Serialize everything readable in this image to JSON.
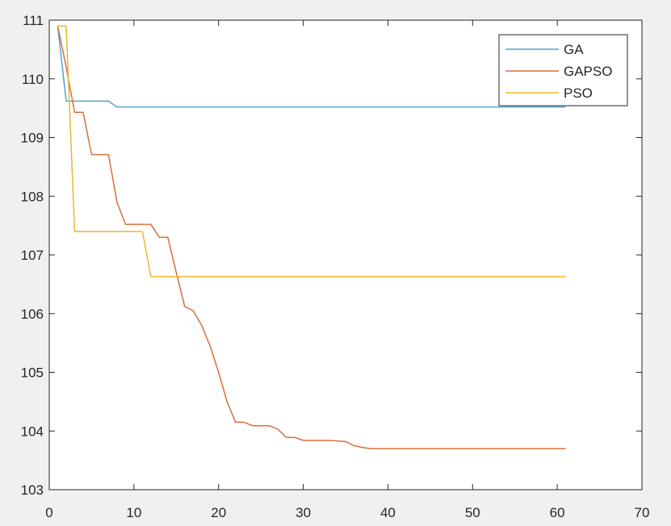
{
  "chart_data": {
    "type": "line",
    "title": "",
    "xlabel": "",
    "ylabel": "",
    "xlim": [
      0,
      70
    ],
    "ylim": [
      103,
      111
    ],
    "xticks": [
      0,
      10,
      20,
      30,
      40,
      50,
      60,
      70
    ],
    "yticks": [
      103,
      104,
      105,
      106,
      107,
      108,
      109,
      110,
      111
    ],
    "grid": false,
    "legend_position": "top-right",
    "series": [
      {
        "name": "GA",
        "color": "#4fa3d1",
        "points": [
          [
            1,
            110.9
          ],
          [
            2,
            109.62
          ],
          [
            7,
            109.62
          ],
          [
            8,
            109.52
          ],
          [
            61,
            109.52
          ]
        ]
      },
      {
        "name": "GAPSO",
        "color": "#d9703a",
        "points": [
          [
            1,
            110.9
          ],
          [
            2,
            110.2
          ],
          [
            3,
            109.43
          ],
          [
            4,
            109.43
          ],
          [
            5,
            108.71
          ],
          [
            6,
            108.71
          ],
          [
            7,
            108.71
          ],
          [
            8,
            107.9
          ],
          [
            9,
            107.52
          ],
          [
            10,
            107.52
          ],
          [
            11,
            107.52
          ],
          [
            12,
            107.52
          ],
          [
            13,
            107.3
          ],
          [
            14,
            107.3
          ],
          [
            15,
            106.7
          ],
          [
            16,
            106.12
          ],
          [
            17,
            106.05
          ],
          [
            18,
            105.8
          ],
          [
            19,
            105.45
          ],
          [
            20,
            105.0
          ],
          [
            21,
            104.5
          ],
          [
            22,
            104.15
          ],
          [
            23,
            104.15
          ],
          [
            24,
            104.09
          ],
          [
            25,
            104.09
          ],
          [
            26,
            104.09
          ],
          [
            27,
            104.03
          ],
          [
            28,
            103.89
          ],
          [
            29,
            103.89
          ],
          [
            30,
            103.84
          ],
          [
            31,
            103.84
          ],
          [
            32,
            103.84
          ],
          [
            33,
            103.84
          ],
          [
            34,
            103.83
          ],
          [
            35,
            103.82
          ],
          [
            36,
            103.75
          ],
          [
            37,
            103.72
          ],
          [
            38,
            103.7
          ],
          [
            61,
            103.7
          ]
        ]
      },
      {
        "name": "PSO",
        "color": "#e8b831",
        "points": [
          [
            1,
            110.9
          ],
          [
            2,
            110.9
          ],
          [
            3,
            107.4
          ],
          [
            11,
            107.4
          ],
          [
            12,
            106.63
          ],
          [
            61,
            106.63
          ]
        ]
      }
    ]
  }
}
